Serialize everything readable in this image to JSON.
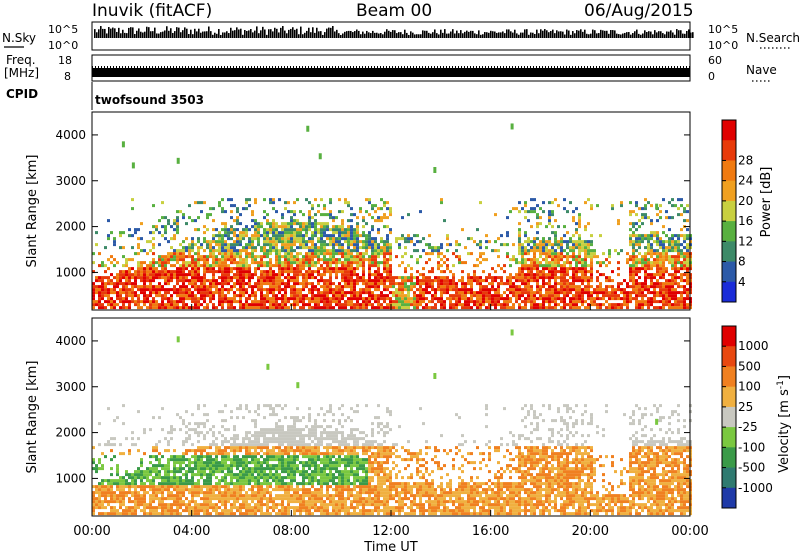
{
  "header": {
    "title": "Inuvik (fitACF)",
    "beam": "Beam 00",
    "date": "06/Aug/2015"
  },
  "nsky": {
    "label": "N.Sky",
    "top_tick": "10^5",
    "bottom_tick": "10^0",
    "right_label": "N.Search"
  },
  "freq": {
    "label_line1": "Freq.",
    "label_line2": "[MHz]",
    "top_tick": "18",
    "bottom_tick": "8",
    "right_top_tick": "60",
    "right_bottom_tick": "0",
    "right_label": "Nave"
  },
  "cpid": {
    "label": "CPID",
    "value": "twofsound 3503"
  },
  "chart_data": [
    {
      "type": "heatmap",
      "name": "power",
      "ylabel": "Slant Range [km]",
      "xlabel": "",
      "xlim": [
        0,
        24
      ],
      "ylim": [
        180,
        4500
      ],
      "yticks": [
        "1000",
        "2000",
        "3000",
        "4000"
      ],
      "colorbar_label": "Power [dB]",
      "colorbar_ticks": [
        "4",
        "8",
        "12",
        "16",
        "20",
        "24",
        "28"
      ],
      "colorbar_colors": [
        "#1a2cd8",
        "#2c5aa8",
        "#3d8a68",
        "#58b040",
        "#c8d040",
        "#f0a020",
        "#f07a10",
        "#e83a0a",
        "#e00000"
      ],
      "scatter_points": [
        {
          "t": 1.2,
          "r": 3860
        },
        {
          "t": 1.6,
          "r": 3400
        },
        {
          "t": 3.4,
          "r": 3500
        },
        {
          "t": 8.6,
          "r": 4200
        },
        {
          "t": 9.1,
          "r": 3600
        },
        {
          "t": 13.7,
          "r": 3300
        },
        {
          "t": 16.8,
          "r": 4250
        },
        {
          "t": 22.6,
          "r": 2500
        }
      ]
    },
    {
      "type": "heatmap",
      "name": "velocity",
      "ylabel": "Slant Range [km]",
      "xlabel": "Time UT",
      "xlim": [
        0,
        24
      ],
      "ylim": [
        180,
        4500
      ],
      "xticks": [
        "00:00",
        "04:00",
        "08:00",
        "12:00",
        "16:00",
        "20:00",
        "00:00"
      ],
      "yticks": [
        "1000",
        "2000",
        "3000",
        "4000"
      ],
      "colorbar_label": "Velocity [m s-1]",
      "colorbar_ticks": [
        "1000",
        "500",
        "100",
        "25",
        "-25",
        "-100",
        "-500",
        "-1000"
      ],
      "colorbar_colors": [
        "#1f3aa8",
        "#2f7a70",
        "#3a9a48",
        "#7ac840",
        "#c8c8c0",
        "#f0b040",
        "#f08020",
        "#e84810",
        "#e00000"
      ],
      "scatter_points": [
        {
          "t": 3.4,
          "r": 4100
        },
        {
          "t": 7.0,
          "r": 3500
        },
        {
          "t": 8.2,
          "r": 3100
        },
        {
          "t": 13.7,
          "r": 3300
        },
        {
          "t": 16.8,
          "r": 4250
        },
        {
          "t": 22.6,
          "r": 2300
        }
      ]
    }
  ]
}
